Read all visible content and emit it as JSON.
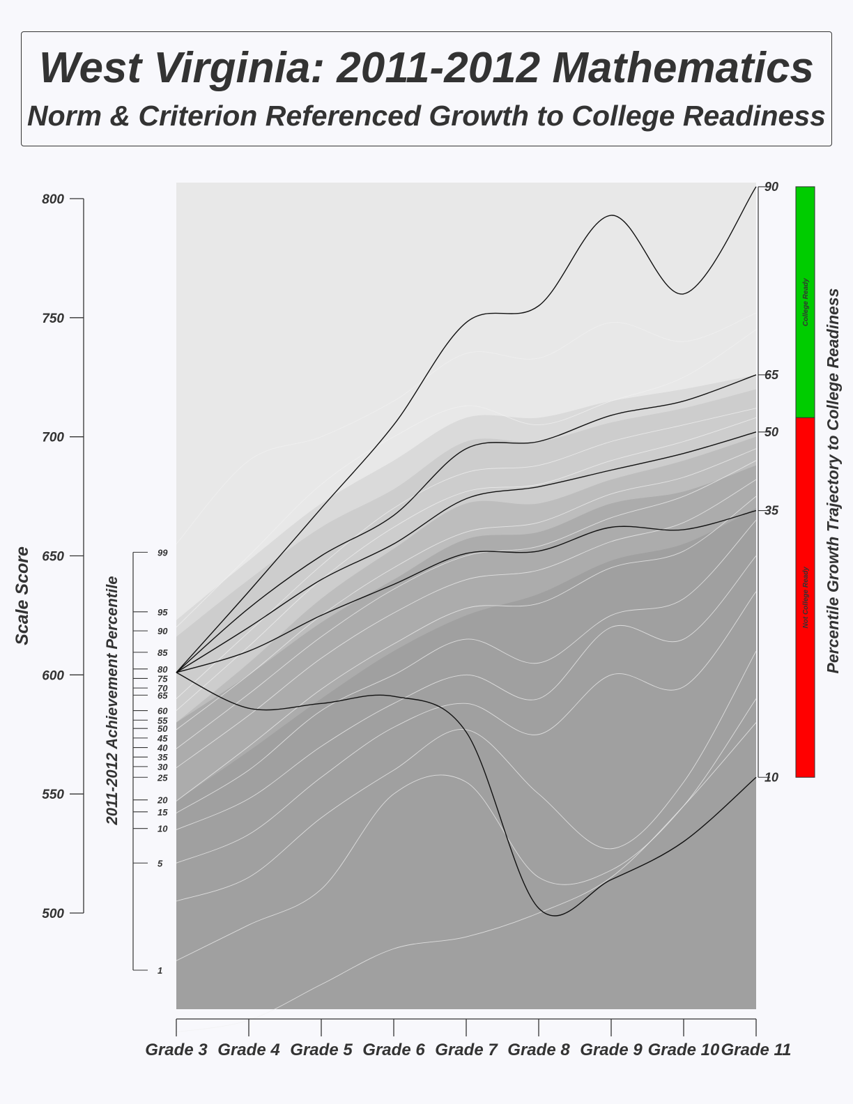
{
  "title": "West Virginia: 2011-2012 Mathematics",
  "subtitle": "Norm & Criterion Referenced Growth to College Readiness",
  "colors": {
    "background": "#f8f8fc",
    "plot_light": "#e8e8e8",
    "band_1": "#dadada",
    "band_2": "#cdcdcd",
    "band_3": "#bdbdbd",
    "band_4": "#acacac",
    "band_5": "#a0a0a0",
    "college_ready": "#00cc00",
    "not_college_ready": "#ff0000",
    "trajectory": "#111111",
    "percentile_curve": "#f2f2f2"
  },
  "chart_data": {
    "type": "line",
    "x_label_ticks": [
      "Grade 3",
      "Grade 4",
      "Grade 5",
      "Grade 6",
      "Grade 7",
      "Grade 8",
      "Grade 9",
      "Grade 10",
      "Grade 11"
    ],
    "y_axis": {
      "label": "Scale Score",
      "ylim": [
        500,
        800
      ],
      "ticks": [
        500,
        550,
        600,
        650,
        700,
        750,
        800
      ]
    },
    "plot_range": [
      458,
      805
    ],
    "percentile_axis": {
      "label": "2011-2012 Achievement Percentile",
      "ticks": [
        {
          "label": "99",
          "score": 651.5
        },
        {
          "label": "95",
          "score": 626.5
        },
        {
          "label": "90",
          "score": 618.5
        },
        {
          "label": "85",
          "score": 609.5
        },
        {
          "label": "80",
          "score": 602.5
        },
        {
          "label": "75",
          "score": 598.5
        },
        {
          "label": "70",
          "score": 594.5
        },
        {
          "label": "65",
          "score": 591.5
        },
        {
          "label": "60",
          "score": 585
        },
        {
          "label": "55",
          "score": 581
        },
        {
          "label": "50",
          "score": 577.5
        },
        {
          "label": "45",
          "score": 573.5
        },
        {
          "label": "40",
          "score": 569.5
        },
        {
          "label": "35",
          "score": 565.5
        },
        {
          "label": "30",
          "score": 561.5
        },
        {
          "label": "25",
          "score": 557
        },
        {
          "label": "20",
          "score": 547.5
        },
        {
          "label": "15",
          "score": 542.5
        },
        {
          "label": "10",
          "score": 535.5
        },
        {
          "label": "5",
          "score": 521
        },
        {
          "label": "1",
          "score": 476
        }
      ]
    },
    "growth_axis": {
      "label": "Percentile Growth Trajectory to College Readiness",
      "ticks": [
        {
          "label": "90",
          "score": 805
        },
        {
          "label": "65",
          "score": 726
        },
        {
          "label": "50",
          "score": 702
        },
        {
          "label": "35",
          "score": 669
        },
        {
          "label": "10",
          "score": 557
        }
      ],
      "college_ready_label": "College Ready",
      "not_college_ready_label": "Not College Ready",
      "college_ready_range": [
        708,
        805
      ],
      "not_college_ready_range": [
        557,
        708
      ]
    },
    "bands": [
      {
        "name": "band_1",
        "upper": [
          623,
          648,
          672,
          690,
          708,
          708,
          715,
          720,
          726
        ]
      },
      {
        "name": "band_2",
        "upper": [
          616,
          640,
          662,
          678,
          698,
          698,
          706,
          712,
          720
        ]
      },
      {
        "name": "band_3",
        "upper": [
          580,
          605,
          632,
          653,
          672,
          672,
          682,
          690,
          700
        ]
      },
      {
        "name": "band_4",
        "upper": [
          580,
          600,
          622,
          640,
          657,
          660,
          672,
          677,
          688
        ]
      },
      {
        "name": "band_5",
        "upper": [
          547,
          568,
          590,
          610,
          625,
          634,
          648,
          655,
          670
        ]
      }
    ],
    "trajectories": [
      {
        "growth_percentile": "90",
        "values": [
          601,
          635,
          670,
          705,
          748,
          755,
          793,
          760,
          805
        ]
      },
      {
        "growth_percentile": "65",
        "values": [
          601,
          628,
          650,
          667,
          695,
          698,
          709,
          715,
          726
        ]
      },
      {
        "growth_percentile": "50",
        "values": [
          601,
          620,
          640,
          655,
          674,
          679,
          686,
          693,
          702
        ]
      },
      {
        "growth_percentile": "35",
        "values": [
          601,
          610,
          625,
          638,
          651,
          652,
          662,
          661,
          669
        ]
      },
      {
        "growth_percentile": "10",
        "values": [
          601,
          586,
          588,
          591,
          576,
          502,
          514,
          530,
          557
        ]
      }
    ],
    "percentile_curves": [
      [
        655,
        690,
        700,
        715,
        735,
        733,
        748,
        740,
        752
      ],
      [
        620,
        650,
        680,
        700,
        713,
        705,
        715,
        725,
        745
      ],
      [
        590,
        618,
        646,
        670,
        685,
        688,
        698,
        705,
        712
      ],
      [
        585,
        612,
        640,
        662,
        677,
        680,
        690,
        698,
        708
      ],
      [
        577,
        600,
        625,
        645,
        660,
        664,
        676,
        683,
        695
      ],
      [
        569,
        592,
        616,
        636,
        650,
        654,
        666,
        675,
        690
      ],
      [
        561,
        583,
        607,
        626,
        640,
        644,
        656,
        664,
        682
      ],
      [
        547,
        570,
        594,
        613,
        628,
        630,
        645,
        652,
        675
      ],
      [
        542,
        560,
        585,
        600,
        615,
        605,
        625,
        632,
        665
      ],
      [
        535,
        548,
        570,
        588,
        600,
        590,
        620,
        615,
        650
      ],
      [
        521,
        533,
        557,
        578,
        588,
        575,
        600,
        595,
        635
      ],
      [
        505,
        515,
        540,
        560,
        577,
        550,
        527,
        555,
        610
      ],
      [
        480,
        495,
        510,
        550,
        555,
        515,
        518,
        545,
        590
      ],
      [
        450,
        455,
        470,
        485,
        490,
        500,
        515,
        545,
        580
      ]
    ]
  }
}
